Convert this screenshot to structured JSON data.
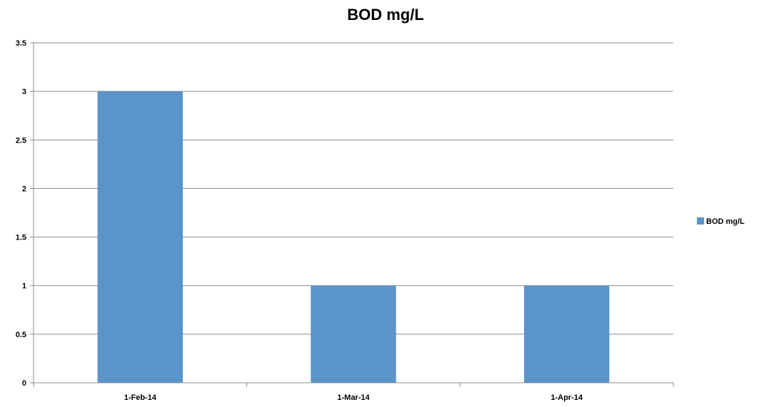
{
  "chart_data": {
    "type": "bar",
    "title": "BOD mg/L",
    "xlabel": "",
    "ylabel": "",
    "categories": [
      "1-Feb-14",
      "1-Mar-14",
      "1-Apr-14"
    ],
    "series": [
      {
        "name": "BOD mg/L",
        "values": [
          3,
          1,
          1
        ],
        "color": "#5b94c8"
      }
    ],
    "ylim": [
      0,
      3.5
    ],
    "yticks": [
      0,
      0.5,
      1,
      1.5,
      2,
      2.5,
      3,
      3.5
    ],
    "ytick_labels": [
      "0",
      "0.5",
      "1",
      "1.5",
      "2",
      "2.5",
      "3",
      "3.5"
    ],
    "grid": true,
    "legend_position": "right",
    "colors": {
      "grid": "#8c8c8c",
      "axis": "#8c8c8c",
      "text": "#000000"
    }
  }
}
